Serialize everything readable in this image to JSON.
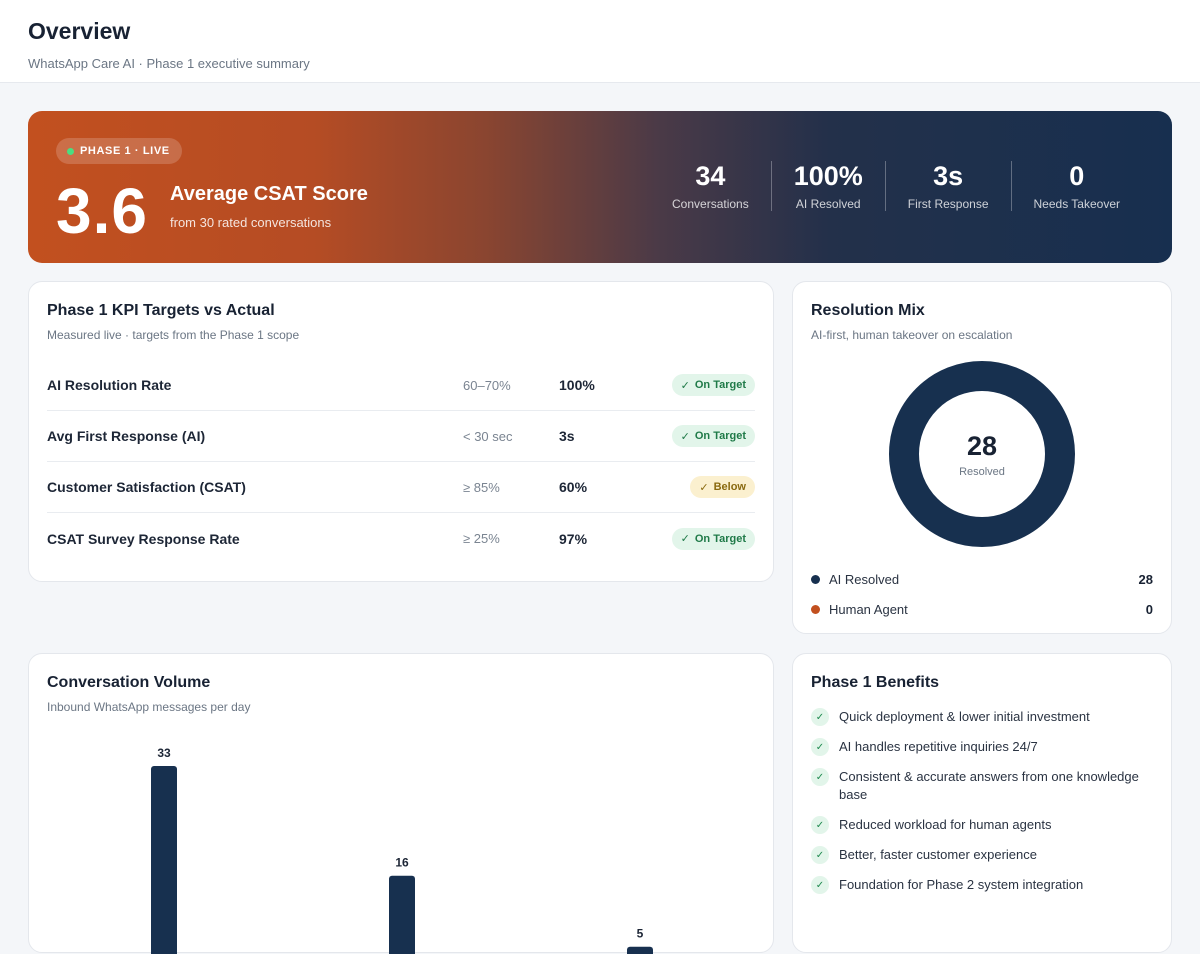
{
  "header": {
    "title": "Overview",
    "subtitle": "WhatsApp Care AI · Phase 1 executive summary"
  },
  "hero": {
    "badge": "PHASE 1 · LIVE",
    "score": "3.6",
    "score_label": "Average CSAT Score",
    "score_sub": "from 30 rated conversations",
    "stats": [
      {
        "value": "34",
        "label": "Conversations"
      },
      {
        "value": "100%",
        "label": "AI Resolved"
      },
      {
        "value": "3s",
        "label": "First Response"
      },
      {
        "value": "0",
        "label": "Needs Takeover"
      }
    ]
  },
  "kpi": {
    "title": "Phase 1 KPI Targets vs Actual",
    "subtitle": "Measured live · targets from the Phase 1 scope",
    "rows": [
      {
        "name": "AI Resolution Rate",
        "target": "60–70%",
        "actual": "100%",
        "status": "On Target",
        "state": "on"
      },
      {
        "name": "Avg First Response (AI)",
        "target": "< 30 sec",
        "actual": "3s",
        "status": "On Target",
        "state": "on"
      },
      {
        "name": "Customer Satisfaction (CSAT)",
        "target": "≥ 85%",
        "actual": "60%",
        "status": "Below",
        "state": "below"
      },
      {
        "name": "CSAT Survey Response Rate",
        "target": "≥ 25%",
        "actual": "97%",
        "status": "On Target",
        "state": "on"
      }
    ]
  },
  "mix": {
    "title": "Resolution Mix",
    "subtitle": "AI-first, human takeover on escalation",
    "center_value": "28",
    "center_label": "Resolved",
    "legend": [
      {
        "label": "AI Resolved",
        "value": "28",
        "color": "#17304f"
      },
      {
        "label": "Human Agent",
        "value": "0",
        "color": "#c2501f"
      }
    ]
  },
  "volume": {
    "title": "Conversation Volume",
    "subtitle": "Inbound WhatsApp messages per day"
  },
  "chart_data": {
    "type": "bar",
    "values": [
      33,
      16,
      5
    ],
    "color": "#17304f"
  },
  "benefits": {
    "title": "Phase 1 Benefits",
    "items": [
      "Quick deployment & lower initial investment",
      "AI handles repetitive inquiries 24/7",
      "Consistent & accurate answers from one knowledge base",
      "Reduced workload for human agents",
      "Better, faster customer experience",
      "Foundation for Phase 2 system integration"
    ]
  },
  "colors": {
    "accent": "#c2501f",
    "navy": "#17304f",
    "success": "#1f7a48",
    "warning": "#8a6a10"
  }
}
